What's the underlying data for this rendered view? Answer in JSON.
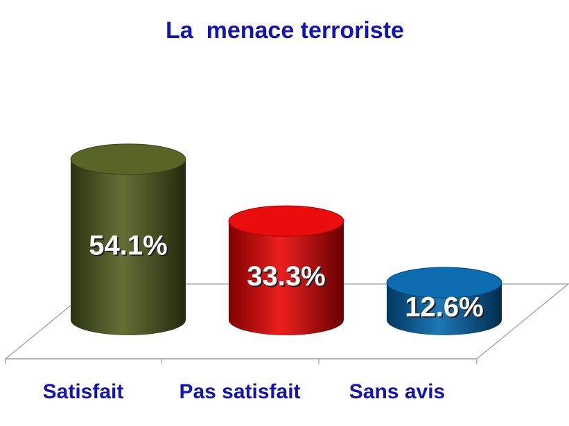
{
  "chart_data": {
    "type": "bar3d-cylinder",
    "title": "La  menace terroriste",
    "categories": [
      "Satisfait",
      "Pas satisfait",
      "Sans avis"
    ],
    "values": [
      54.1,
      33.3,
      12.6
    ],
    "value_labels": [
      "54.1%",
      "33.3%",
      "12.6%"
    ],
    "colors": [
      "#4f5d1c",
      "#e80000",
      "#0064ac"
    ]
  }
}
